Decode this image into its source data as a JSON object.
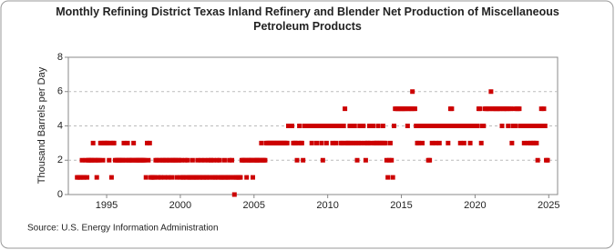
{
  "chart_data": {
    "type": "scatter",
    "title": "Monthly Refining District Texas Inland Refinery and Blender Net Production of Miscellaneous Petroleum Products",
    "y_label": "Thousand Barrels per Day",
    "source": "Source: U.S. Energy Information Administration",
    "xlim": [
      1992.4,
      2025.6
    ],
    "xticks": [
      1995,
      2000,
      2005,
      2010,
      2015,
      2020,
      2025
    ],
    "ylim": [
      0,
      8
    ],
    "yticks": [
      0,
      2,
      4,
      6,
      8
    ],
    "grid": true,
    "color": "#cc0000",
    "x": [
      1993,
      1993.08,
      1993.17,
      1993.25,
      1993.33,
      1993.42,
      1993.5,
      1993.58,
      1993.67,
      1993.75,
      1993.83,
      1993.92,
      1994,
      1994.08,
      1994.17,
      1994.25,
      1994.33,
      1994.42,
      1994.5,
      1994.58,
      1994.67,
      1994.75,
      1994.83,
      1994.92,
      1995,
      1995.08,
      1995.17,
      1995.25,
      1995.33,
      1995.42,
      1995.5,
      1995.58,
      1995.67,
      1995.75,
      1995.83,
      1995.92,
      1996,
      1996.08,
      1996.17,
      1996.25,
      1996.33,
      1996.42,
      1996.5,
      1996.58,
      1996.67,
      1996.75,
      1996.83,
      1996.92,
      1997,
      1997.08,
      1997.17,
      1997.25,
      1997.33,
      1997.42,
      1997.5,
      1997.58,
      1997.67,
      1997.75,
      1997.83,
      1997.92,
      1998,
      1998.08,
      1998.17,
      1998.25,
      1998.33,
      1998.42,
      1998.5,
      1998.58,
      1998.67,
      1998.75,
      1998.83,
      1998.92,
      1999,
      1999.08,
      1999.17,
      1999.25,
      1999.33,
      1999.42,
      1999.5,
      1999.58,
      1999.67,
      1999.75,
      1999.83,
      1999.92,
      2000,
      2000.08,
      2000.17,
      2000.25,
      2000.33,
      2000.42,
      2000.5,
      2000.58,
      2000.67,
      2000.75,
      2000.83,
      2000.92,
      2001,
      2001.08,
      2001.17,
      2001.25,
      2001.33,
      2001.42,
      2001.5,
      2001.58,
      2001.67,
      2001.75,
      2001.83,
      2001.92,
      2002,
      2002.08,
      2002.17,
      2002.25,
      2002.33,
      2002.42,
      2002.5,
      2002.58,
      2002.67,
      2002.75,
      2002.83,
      2002.92,
      2003,
      2003.08,
      2003.17,
      2003.25,
      2003.33,
      2003.42,
      2003.5,
      2003.58,
      2003.67,
      2003.75,
      2003.83,
      2003.92,
      2004,
      2004.08,
      2004.17,
      2004.25,
      2004.33,
      2004.42,
      2004.5,
      2004.58,
      2004.67,
      2004.75,
      2004.83,
      2004.92,
      2005,
      2005.08,
      2005.17,
      2005.25,
      2005.33,
      2005.42,
      2005.5,
      2005.58,
      2005.67,
      2005.75,
      2005.83,
      2005.92,
      2006,
      2006.08,
      2006.17,
      2006.25,
      2006.33,
      2006.42,
      2006.5,
      2006.58,
      2006.67,
      2006.75,
      2006.83,
      2006.92,
      2007,
      2007.08,
      2007.17,
      2007.25,
      2007.33,
      2007.42,
      2007.5,
      2007.58,
      2007.67,
      2007.75,
      2007.83,
      2007.92,
      2008,
      2008.08,
      2008.17,
      2008.25,
      2008.33,
      2008.42,
      2008.5,
      2008.58,
      2008.67,
      2008.75,
      2008.83,
      2008.92,
      2009,
      2009.08,
      2009.17,
      2009.25,
      2009.33,
      2009.42,
      2009.5,
      2009.58,
      2009.67,
      2009.75,
      2009.83,
      2009.92,
      2010,
      2010.08,
      2010.17,
      2010.25,
      2010.33,
      2010.42,
      2010.5,
      2010.58,
      2010.67,
      2010.75,
      2010.83,
      2010.92,
      2011,
      2011.08,
      2011.17,
      2011.25,
      2011.33,
      2011.42,
      2011.5,
      2011.58,
      2011.67,
      2011.75,
      2011.83,
      2011.92,
      2012,
      2012.08,
      2012.17,
      2012.25,
      2012.33,
      2012.42,
      2012.5,
      2012.58,
      2012.67,
      2012.75,
      2012.83,
      2012.92,
      2013,
      2013.08,
      2013.17,
      2013.25,
      2013.33,
      2013.42,
      2013.5,
      2013.58,
      2013.67,
      2013.75,
      2013.83,
      2013.92,
      2014,
      2014.08,
      2014.17,
      2014.25,
      2014.33,
      2014.42,
      2014.5,
      2014.58,
      2014.67,
      2014.75,
      2014.83,
      2014.92,
      2015,
      2015.08,
      2015.17,
      2015.25,
      2015.33,
      2015.42,
      2015.5,
      2015.58,
      2015.67,
      2015.75,
      2015.83,
      2015.92,
      2016,
      2016.08,
      2016.17,
      2016.25,
      2016.33,
      2016.42,
      2016.5,
      2016.58,
      2016.67,
      2016.75,
      2016.83,
      2016.92,
      2017,
      2017.08,
      2017.17,
      2017.25,
      2017.33,
      2017.42,
      2017.5,
      2017.58,
      2017.67,
      2017.75,
      2017.83,
      2017.92,
      2018,
      2018.08,
      2018.17,
      2018.25,
      2018.33,
      2018.42,
      2018.5,
      2018.58,
      2018.67,
      2018.75,
      2018.83,
      2018.92,
      2019,
      2019.08,
      2019.17,
      2019.25,
      2019.33,
      2019.42,
      2019.5,
      2019.58,
      2019.67,
      2019.75,
      2019.83,
      2019.92,
      2020,
      2020.08,
      2020.17,
      2020.25,
      2020.33,
      2020.42,
      2020.5,
      2020.58,
      2020.67,
      2020.75,
      2020.83,
      2020.92,
      2021,
      2021.08,
      2021.17,
      2021.25,
      2021.33,
      2021.42,
      2021.5,
      2021.58,
      2021.67,
      2021.75,
      2021.83,
      2021.92,
      2022,
      2022.08,
      2022.17,
      2022.25,
      2022.33,
      2022.42,
      2022.5,
      2022.58,
      2022.67,
      2022.75,
      2022.83,
      2022.92,
      2023,
      2023.08,
      2023.17,
      2023.25,
      2023.33,
      2023.42,
      2023.5,
      2023.58,
      2023.67,
      2023.75,
      2023.83,
      2023.92,
      2024,
      2024.08,
      2024.17,
      2024.25,
      2024.33,
      2024.42,
      2024.5,
      2024.58,
      2024.67,
      2024.75,
      2024.83,
      2024.92
    ],
    "values": [
      1,
      1,
      1,
      1,
      2,
      1,
      1,
      2,
      1,
      2,
      2,
      2,
      2,
      3,
      2,
      2,
      1,
      2,
      2,
      3,
      3,
      2,
      3,
      3,
      3,
      3,
      2,
      3,
      1,
      3,
      3,
      2,
      2,
      2,
      2,
      2,
      2,
      2,
      3,
      2,
      2,
      3,
      2,
      2,
      2,
      2,
      3,
      2,
      2,
      2,
      2,
      2,
      2,
      2,
      2,
      2,
      1,
      3,
      2,
      3,
      1,
      1,
      1,
      1,
      2,
      2,
      1,
      2,
      1,
      2,
      2,
      1,
      2,
      2,
      1,
      2,
      2,
      1,
      2,
      2,
      2,
      1,
      2,
      2,
      1,
      2,
      1,
      1,
      2,
      1,
      2,
      1,
      1,
      1,
      2,
      1,
      1,
      1,
      2,
      1,
      1,
      2,
      1,
      1,
      2,
      1,
      1,
      2,
      1,
      2,
      1,
      2,
      1,
      1,
      2,
      1,
      2,
      1,
      1,
      1,
      2,
      1,
      1,
      1,
      2,
      1,
      2,
      1,
      0,
      1,
      1,
      1,
      1,
      1,
      2,
      2,
      2,
      2,
      1,
      2,
      2,
      2,
      2,
      1,
      2,
      2,
      2,
      2,
      2,
      2,
      3,
      2,
      2,
      2,
      3,
      3,
      3,
      3,
      3,
      3,
      3,
      3,
      3,
      3,
      3,
      3,
      3,
      3,
      3,
      3,
      3,
      3,
      4,
      4,
      4,
      4,
      3,
      3,
      3,
      2,
      3,
      4,
      3,
      3,
      2,
      4,
      4,
      4,
      4,
      4,
      4,
      3,
      4,
      4,
      4,
      3,
      4,
      4,
      4,
      3,
      2,
      4,
      4,
      3,
      4,
      4,
      4,
      4,
      3,
      4,
      4,
      3,
      4,
      4,
      4,
      3,
      3,
      4,
      5,
      3,
      3,
      3,
      4,
      3,
      4,
      3,
      4,
      3,
      2,
      3,
      4,
      3,
      4,
      4,
      3,
      2,
      3,
      3,
      4,
      3,
      4,
      4,
      3,
      3,
      3,
      4,
      3,
      3,
      3,
      4,
      3,
      3,
      2,
      1,
      2,
      3,
      2,
      1,
      4,
      5,
      5,
      5,
      5,
      5,
      5,
      5,
      5,
      5,
      5,
      4,
      5,
      5,
      5,
      6,
      5,
      5,
      4,
      3,
      3,
      4,
      4,
      3,
      4,
      4,
      4,
      4,
      2,
      2,
      4,
      3,
      4,
      4,
      3,
      4,
      4,
      3,
      4,
      4,
      4,
      4,
      4,
      4,
      3,
      4,
      5,
      5,
      4,
      4,
      4,
      4,
      4,
      4,
      3,
      4,
      4,
      3,
      4,
      4,
      4,
      4,
      3,
      4,
      4,
      4,
      4,
      4,
      4,
      5,
      5,
      3,
      4,
      4,
      5,
      5,
      5,
      5,
      5,
      6,
      5,
      5,
      5,
      5,
      5,
      5,
      5,
      5,
      4,
      5,
      5,
      5,
      5,
      4,
      5,
      5,
      3,
      4,
      5,
      4,
      5,
      5,
      5,
      4,
      4,
      4,
      3,
      4,
      4,
      3,
      4,
      3,
      4,
      3,
      3,
      4,
      3,
      2,
      4,
      4,
      5,
      4,
      5,
      4,
      2,
      2
    ]
  }
}
